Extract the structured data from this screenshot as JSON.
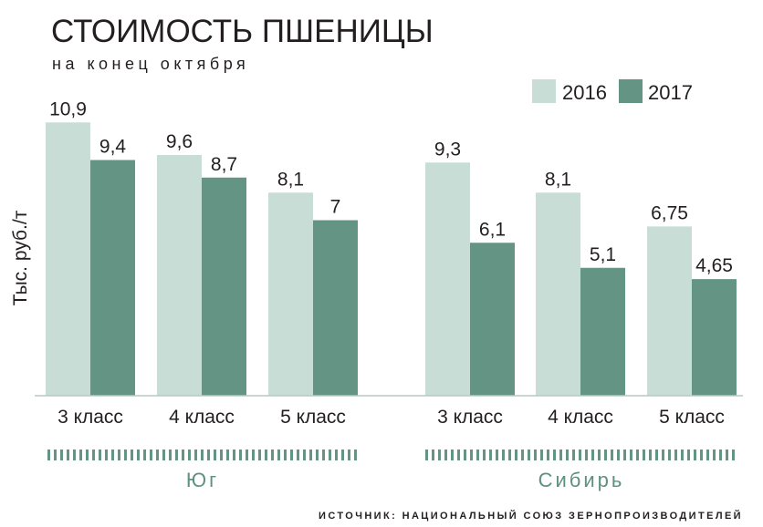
{
  "colors": {
    "series_2016": "#c8ddd6",
    "series_2017": "#649484",
    "ruler": "#649484",
    "axis": "#b7c9c2",
    "text": "#231f20"
  },
  "chart_data": {
    "type": "bar",
    "title": "СТОИМОСТЬ ПШЕНИЦЫ",
    "subtitle": "на конец октября",
    "ylabel": "Тыс. руб./т",
    "xlabel": "",
    "ylim": [
      0,
      11.5
    ],
    "grid": false,
    "legend_position": "top-right",
    "groups": [
      {
        "name": "Юг",
        "categories": [
          "3 класс",
          "4 класс",
          "5 класс"
        ]
      },
      {
        "name": "Сибирь",
        "categories": [
          "3 класс",
          "4 класс",
          "5 класс"
        ]
      }
    ],
    "categories": [
      "3 класс",
      "4 класс",
      "5 класс",
      "3 класс",
      "4 класс",
      "5 класс"
    ],
    "series": [
      {
        "name": "2016",
        "values": [
          10.9,
          9.6,
          8.1,
          9.3,
          8.1,
          6.75
        ],
        "labels": [
          "10,9",
          "9,6",
          "8,1",
          "9,3",
          "8,1",
          "6,75"
        ]
      },
      {
        "name": "2017",
        "values": [
          9.4,
          8.7,
          7,
          6.1,
          5.1,
          4.65
        ],
        "labels": [
          "9,4",
          "8,7",
          "7",
          "6,1",
          "5,1",
          "4,65"
        ]
      }
    ],
    "source": "ИСТОЧНИК: НАЦИОНАЛЬНЫЙ СОЮЗ ЗЕРНОПРОИЗВОДИТЕЛЕЙ"
  }
}
